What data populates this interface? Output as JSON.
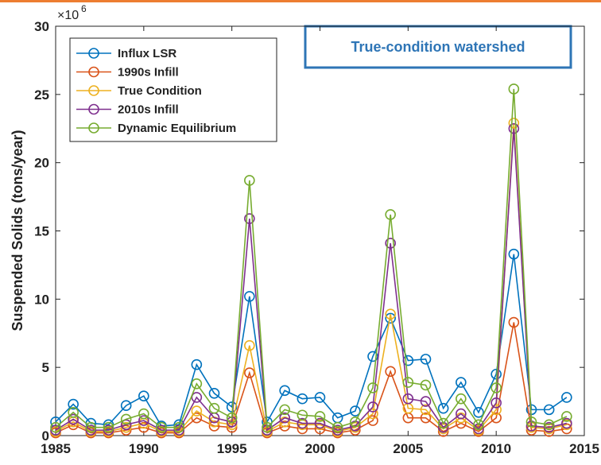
{
  "chart_data": {
    "type": "line",
    "y_label": "Suspended Solids (tons/year)",
    "y_multiplier": "×10",
    "y_multiplier_exponent": "6",
    "annotation": "True-condition watershed",
    "x": [
      1985,
      1986,
      1987,
      1988,
      1989,
      1990,
      1991,
      1992,
      1993,
      1994,
      1995,
      1996,
      1997,
      1998,
      1999,
      2000,
      2001,
      2002,
      2003,
      2004,
      2005,
      2006,
      2007,
      2008,
      2009,
      2010,
      2011,
      2012,
      2013,
      2014
    ],
    "series": [
      {
        "name": "Influx LSR",
        "color": "#0072BD",
        "values": [
          1.0,
          2.3,
          0.9,
          0.8,
          2.2,
          2.9,
          0.7,
          0.8,
          5.2,
          3.1,
          2.1,
          10.2,
          1.0,
          3.3,
          2.7,
          2.8,
          1.3,
          1.8,
          5.8,
          8.6,
          5.5,
          5.6,
          2.0,
          3.9,
          1.7,
          4.5,
          13.3,
          1.9,
          1.9,
          2.8
        ]
      },
      {
        "name": "1990s Infill",
        "color": "#D95319",
        "values": [
          0.2,
          0.8,
          0.2,
          0.2,
          0.4,
          0.6,
          0.2,
          0.2,
          1.3,
          0.7,
          0.6,
          4.6,
          0.2,
          0.7,
          0.5,
          0.5,
          0.2,
          0.4,
          1.1,
          4.7,
          1.3,
          1.3,
          0.3,
          0.9,
          0.3,
          1.3,
          8.3,
          0.4,
          0.3,
          0.5
        ]
      },
      {
        "name": "True Condition",
        "color": "#EDB120",
        "values": [
          0.3,
          1.0,
          0.3,
          0.3,
          0.6,
          0.9,
          0.3,
          0.3,
          1.8,
          1.0,
          0.8,
          6.6,
          0.3,
          1.0,
          0.8,
          0.8,
          0.3,
          0.6,
          1.6,
          8.9,
          2.0,
          1.9,
          0.5,
          1.3,
          0.4,
          1.9,
          22.9,
          0.6,
          0.5,
          0.8
        ]
      },
      {
        "name": "2010s Infill",
        "color": "#7E2F8E",
        "values": [
          0.4,
          1.2,
          0.4,
          0.4,
          0.8,
          1.1,
          0.4,
          0.4,
          2.8,
          1.3,
          1.0,
          15.9,
          0.4,
          1.3,
          0.9,
          0.9,
          0.4,
          0.7,
          2.1,
          14.1,
          2.7,
          2.5,
          0.6,
          1.6,
          0.5,
          2.4,
          22.5,
          0.7,
          0.6,
          0.9
        ]
      },
      {
        "name": "Dynamic Equilibrium",
        "color": "#77AC30",
        "values": [
          0.6,
          1.7,
          0.6,
          0.6,
          1.2,
          1.6,
          0.6,
          0.6,
          3.8,
          2.0,
          1.3,
          18.7,
          0.6,
          1.9,
          1.5,
          1.4,
          0.6,
          1.0,
          3.5,
          16.2,
          3.9,
          3.7,
          0.9,
          2.7,
          0.8,
          3.5,
          25.4,
          1.0,
          0.8,
          1.4
        ]
      }
    ],
    "xlim": [
      1985,
      2015
    ],
    "xticks": [
      1985,
      1990,
      1995,
      2000,
      2005,
      2010,
      2015
    ],
    "ylim": [
      0,
      30
    ],
    "yticks": [
      0,
      5,
      10,
      15,
      20,
      25,
      30
    ],
    "grid": false,
    "legend": "top-left"
  }
}
